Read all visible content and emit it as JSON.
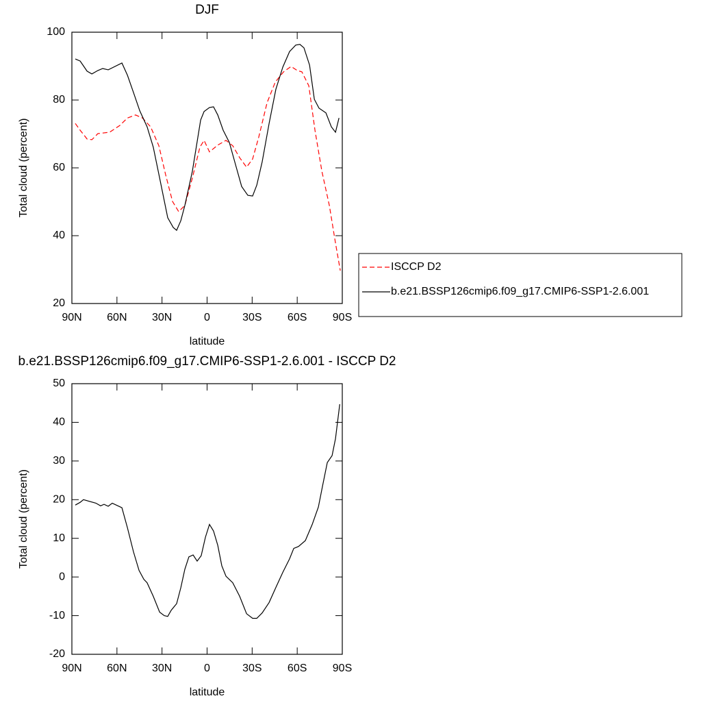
{
  "chart_data": [
    {
      "type": "line",
      "title": "DJF",
      "xlabel": "latitude",
      "ylabel": "Total cloud (percent)",
      "xlim": [
        90,
        -90
      ],
      "xticks": [
        {
          "value": 90,
          "label": "90N"
        },
        {
          "value": 60,
          "label": "60N"
        },
        {
          "value": 30,
          "label": "30N"
        },
        0,
        {
          "value": -30,
          "label": "30S"
        },
        {
          "value": -60,
          "label": "60S"
        },
        {
          "value": -90,
          "label": "90S"
        }
      ],
      "ylim": [
        20,
        100
      ],
      "yticks": [
        20,
        40,
        60,
        80,
        100
      ],
      "legend": "right",
      "series": [
        {
          "name": "ISCCP D2",
          "color": "#ff0000",
          "linestyle": "dashed",
          "x": [
            87.7,
            84.5,
            79.9,
            76.7,
            72.7,
            64.9,
            58.1,
            53.0,
            47.6,
            43.0,
            37.6,
            32.1,
            27.6,
            23.0,
            18.9,
            14.8,
            9.8,
            4.8,
            2.0,
            -1.6,
            -7.1,
            -12.6,
            -17.1,
            -21.7,
            -26.3,
            -30.3,
            -34.4,
            -39.9,
            -45.4,
            -50.9,
            -55.9,
            -60.0,
            -63.1,
            -67.7,
            -71.8,
            -76.4,
            -81.4,
            -85.5,
            -88.7
          ],
          "values": [
            73.1,
            71.1,
            68.5,
            68.3,
            70.1,
            70.5,
            72.5,
            74.7,
            75.6,
            74.7,
            72.1,
            66.5,
            58.0,
            50.1,
            47.1,
            48.9,
            57.0,
            66.1,
            68.1,
            64.7,
            66.7,
            68.1,
            66.5,
            63.0,
            60.2,
            62.6,
            69.1,
            79.2,
            85.3,
            88.3,
            89.9,
            88.7,
            88.3,
            84.2,
            71.1,
            59.0,
            48.9,
            37.8,
            29.7
          ]
        },
        {
          "name": "b.e21.BSSP126cmip6.f09_g17.CMIP6-SSP1-2.6.001",
          "color": "#000000",
          "linestyle": "solid",
          "x": [
            87.7,
            84.5,
            79.9,
            76.7,
            72.7,
            69.5,
            65.8,
            56.7,
            53.0,
            49.0,
            44.8,
            39.9,
            35.8,
            31.6,
            26.2,
            22.5,
            20.3,
            17.5,
            14.8,
            9.8,
            4.3,
            2.0,
            -1.6,
            -4.3,
            -7.1,
            -10.7,
            -14.8,
            -18.9,
            -23.0,
            -27.1,
            -30.3,
            -33.1,
            -36.7,
            -41.3,
            -45.8,
            -50.4,
            -54.9,
            -59.0,
            -61.8,
            -64.5,
            -68.2,
            -71.4,
            -74.5,
            -79.1,
            -82.7,
            -85.5,
            -87.8
          ],
          "values": [
            92.1,
            91.5,
            88.5,
            87.7,
            88.7,
            89.3,
            88.9,
            90.9,
            87.3,
            82.2,
            76.8,
            72.1,
            66.1,
            57.0,
            45.3,
            42.4,
            41.6,
            44.4,
            48.9,
            59.0,
            74.1,
            76.6,
            77.8,
            78.0,
            75.6,
            71.1,
            67.5,
            61.0,
            54.5,
            51.9,
            51.7,
            54.9,
            61.8,
            73.1,
            83.2,
            89.7,
            94.3,
            96.2,
            96.4,
            95.4,
            90.3,
            80.2,
            77.6,
            76.2,
            72.1,
            70.5,
            74.7
          ]
        }
      ]
    },
    {
      "type": "line",
      "title": "b.e21.BSSP126cmip6.f09_g17.CMIP6-SSP1-2.6.001 - ISCCP D2",
      "xlabel": "latitude",
      "ylabel": "Total cloud (percent)",
      "xlim": [
        90,
        -90
      ],
      "xticks": [
        {
          "value": 90,
          "label": "90N"
        },
        {
          "value": 60,
          "label": "60N"
        },
        {
          "value": 30,
          "label": "30N"
        },
        0,
        {
          "value": -30,
          "label": "30S"
        },
        {
          "value": -60,
          "label": "60S"
        },
        {
          "value": -90,
          "label": "90S"
        }
      ],
      "ylim": [
        -20,
        50
      ],
      "yticks": [
        -20,
        -10,
        0,
        10,
        20,
        30,
        40,
        50
      ],
      "series": [
        {
          "color": "#000000",
          "linestyle": "solid",
          "x": [
            87.7,
            84.5,
            82.3,
            74.0,
            70.9,
            68.6,
            65.8,
            63.1,
            56.7,
            53.0,
            49.0,
            45.3,
            42.1,
            39.9,
            35.8,
            31.6,
            28.5,
            26.2,
            23.9,
            20.3,
            17.5,
            14.8,
            12.1,
            9.3,
            6.6,
            3.9,
            1.1,
            -1.6,
            -4.3,
            -7.1,
            -9.8,
            -12.6,
            -17.1,
            -21.7,
            -26.3,
            -30.3,
            -33.1,
            -36.7,
            -41.3,
            -45.8,
            -50.4,
            -54.9,
            -57.7,
            -60.9,
            -65.4,
            -70.0,
            -74.1,
            -76.8,
            -80.0,
            -83.2,
            -85.5,
            -88.3
          ],
          "values": [
            18.6,
            19.3,
            20.0,
            19.1,
            18.4,
            18.8,
            18.3,
            19.1,
            17.9,
            12.7,
            6.5,
            1.7,
            -0.6,
            -1.5,
            -5.0,
            -9.1,
            -10.0,
            -10.2,
            -8.6,
            -6.9,
            -2.8,
            2.0,
            5.2,
            5.7,
            4.1,
            5.5,
            10.3,
            13.6,
            11.9,
            8.2,
            2.9,
            0.2,
            -1.5,
            -5.0,
            -9.5,
            -10.7,
            -10.7,
            -9.3,
            -6.6,
            -2.7,
            1.2,
            4.7,
            7.4,
            7.9,
            9.4,
            13.6,
            18.1,
            23.4,
            29.6,
            31.4,
            35.8,
            44.7
          ]
        }
      ]
    }
  ]
}
